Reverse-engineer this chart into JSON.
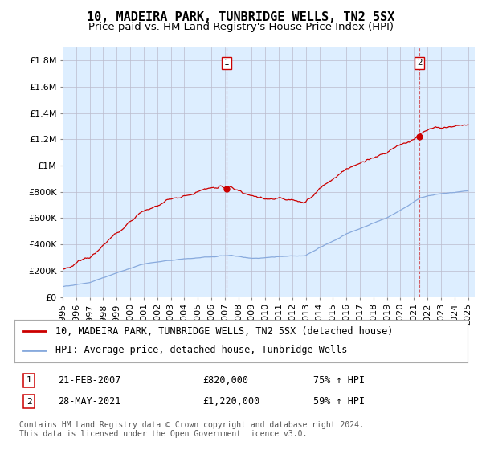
{
  "title": "10, MADEIRA PARK, TUNBRIDGE WELLS, TN2 5SX",
  "subtitle": "Price paid vs. HM Land Registry's House Price Index (HPI)",
  "ylabel_ticks": [
    "£0",
    "£200K",
    "£400K",
    "£600K",
    "£800K",
    "£1M",
    "£1.2M",
    "£1.4M",
    "£1.6M",
    "£1.8M"
  ],
  "ytick_values": [
    0,
    200000,
    400000,
    600000,
    800000,
    1000000,
    1200000,
    1400000,
    1600000,
    1800000
  ],
  "ylim": [
    0,
    1900000
  ],
  "xlim_start": 1995.0,
  "xlim_end": 2025.5,
  "sale1_x": 2007.13,
  "sale1_y": 820000,
  "sale1_label": "1",
  "sale1_date": "21-FEB-2007",
  "sale1_price": "£820,000",
  "sale1_hpi": "75% ↑ HPI",
  "sale2_x": 2021.41,
  "sale2_y": 1220000,
  "sale2_label": "2",
  "sale2_date": "28-MAY-2021",
  "sale2_price": "£1,220,000",
  "sale2_hpi": "59% ↑ HPI",
  "line1_color": "#cc0000",
  "line2_color": "#88aadd",
  "marker_color": "#cc0000",
  "dashed_color": "#cc0000",
  "plot_bg_color": "#ddeeff",
  "legend1_label": "10, MADEIRA PARK, TUNBRIDGE WELLS, TN2 5SX (detached house)",
  "legend2_label": "HPI: Average price, detached house, Tunbridge Wells",
  "footer": "Contains HM Land Registry data © Crown copyright and database right 2024.\nThis data is licensed under the Open Government Licence v3.0.",
  "background_color": "#ffffff",
  "grid_color": "#bbbbcc",
  "title_fontsize": 11,
  "subtitle_fontsize": 9.5,
  "tick_fontsize": 8,
  "legend_fontsize": 8.5,
  "annotation_fontsize": 8.5,
  "footer_fontsize": 7
}
